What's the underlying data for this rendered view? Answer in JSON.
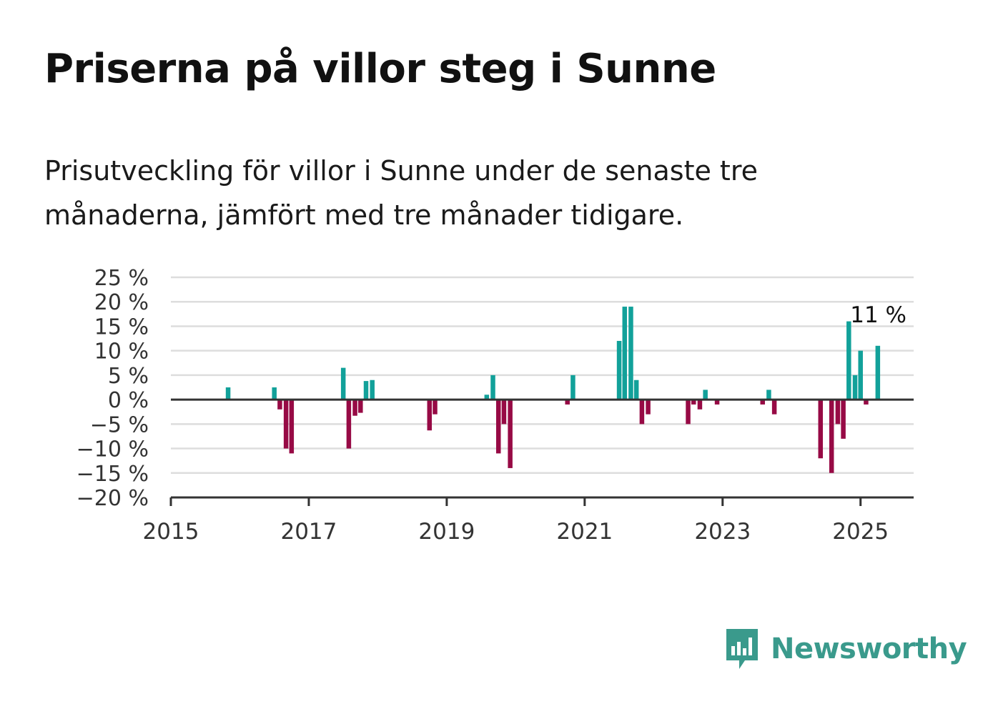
{
  "title": "Priserna på villor steg i Sunne",
  "subtitle": "Prisutveckling för villor i Sunne under de senaste tre månaderna, jämfört med tre månader tidigare.",
  "logo": {
    "text": "Newsworthy",
    "icon": "newsworthy-chart-bubble-icon"
  },
  "colors": {
    "positive": "#12a19a",
    "negative": "#970a45",
    "axis": "#333333",
    "grid": "#dddddd",
    "logo": "#3a9a8c"
  },
  "chart_data": {
    "type": "bar",
    "ylim": [
      -20,
      25
    ],
    "yticks": [
      25,
      20,
      15,
      10,
      5,
      0,
      -5,
      -10,
      -15,
      -20
    ],
    "ytick_labels": [
      "25 %",
      "20 %",
      "15 %",
      "10 %",
      "5 %",
      "0 %",
      "−5 %",
      "−10 %",
      "−15 %",
      "−20 %"
    ],
    "xlim": [
      2015.0,
      2025.77
    ],
    "xticks": [
      2015,
      2017,
      2019,
      2021,
      2023,
      2025
    ],
    "xtick_labels": [
      "2015",
      "2017",
      "2019",
      "2021",
      "2023",
      "2025"
    ],
    "grid": true,
    "annotation": {
      "text": "11 %",
      "x": 2025.25,
      "y": 11
    },
    "bars": [
      {
        "x": 2015.83,
        "value": 2.5
      },
      {
        "x": 2016.5,
        "value": 2.5
      },
      {
        "x": 2016.58,
        "value": -2
      },
      {
        "x": 2016.67,
        "value": -10
      },
      {
        "x": 2016.75,
        "value": -11
      },
      {
        "x": 2017.5,
        "value": 6.5
      },
      {
        "x": 2017.58,
        "value": -10
      },
      {
        "x": 2017.67,
        "value": -3.3
      },
      {
        "x": 2017.75,
        "value": -2.7
      },
      {
        "x": 2017.83,
        "value": 3.8
      },
      {
        "x": 2017.92,
        "value": 4
      },
      {
        "x": 2018.75,
        "value": -6.3
      },
      {
        "x": 2018.83,
        "value": -3
      },
      {
        "x": 2019.58,
        "value": 1
      },
      {
        "x": 2019.67,
        "value": 5
      },
      {
        "x": 2019.75,
        "value": -11
      },
      {
        "x": 2019.83,
        "value": -5
      },
      {
        "x": 2019.92,
        "value": -14
      },
      {
        "x": 2020.75,
        "value": -1
      },
      {
        "x": 2020.83,
        "value": 5
      },
      {
        "x": 2021.5,
        "value": 12
      },
      {
        "x": 2021.58,
        "value": 19
      },
      {
        "x": 2021.67,
        "value": 19
      },
      {
        "x": 2021.75,
        "value": 4
      },
      {
        "x": 2021.83,
        "value": -5
      },
      {
        "x": 2021.92,
        "value": -3
      },
      {
        "x": 2022.5,
        "value": -5
      },
      {
        "x": 2022.58,
        "value": -1
      },
      {
        "x": 2022.67,
        "value": -2
      },
      {
        "x": 2022.75,
        "value": 2
      },
      {
        "x": 2022.92,
        "value": -1
      },
      {
        "x": 2023.58,
        "value": -1
      },
      {
        "x": 2023.67,
        "value": 2
      },
      {
        "x": 2023.75,
        "value": -3
      },
      {
        "x": 2024.42,
        "value": -12
      },
      {
        "x": 2024.58,
        "value": -15
      },
      {
        "x": 2024.67,
        "value": -5
      },
      {
        "x": 2024.75,
        "value": -8
      },
      {
        "x": 2024.83,
        "value": 16
      },
      {
        "x": 2024.92,
        "value": 5
      },
      {
        "x": 2025.0,
        "value": 10
      },
      {
        "x": 2025.08,
        "value": -1
      },
      {
        "x": 2025.25,
        "value": 11
      }
    ]
  }
}
